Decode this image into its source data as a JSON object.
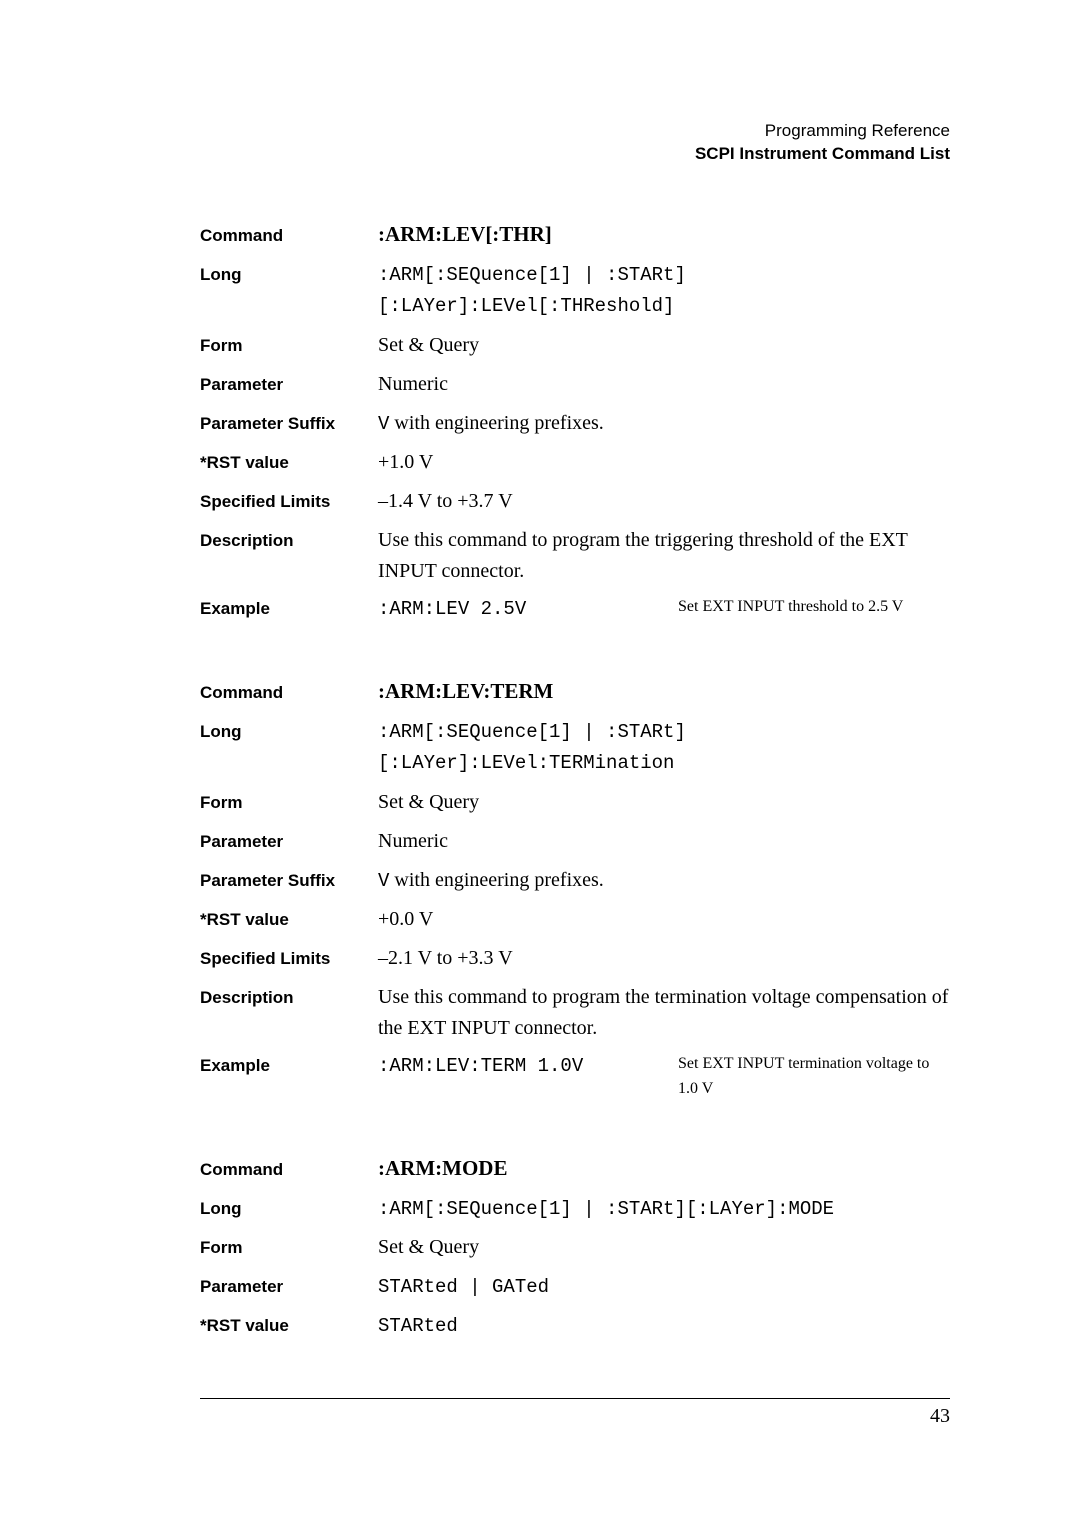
{
  "header": {
    "line1": "Programming Reference",
    "line2": "SCPI Instrument Command List"
  },
  "sections": [
    {
      "rows": [
        {
          "label": "Command",
          "kind": "title",
          "value": ":ARM:LEV[:THR]"
        },
        {
          "label": "Long",
          "kind": "mono",
          "value": ":ARM[:SEQuence[1] | :STARt][:LAYer]:LEVel[:THReshold]"
        },
        {
          "label": "Form",
          "kind": "text",
          "value": "Set & Query"
        },
        {
          "label": "Parameter",
          "kind": "text",
          "value": "Numeric"
        },
        {
          "label": "Parameter Suffix",
          "kind": "html",
          "value": "<span class=\"mono\">V</span> with engineering prefixes."
        },
        {
          "label": "*RST value",
          "kind": "text",
          "value": "+1.0 V"
        },
        {
          "label": "Specified Limits",
          "kind": "text",
          "value": "–1.4 V to +3.7 V"
        },
        {
          "label": "Description",
          "kind": "text",
          "value": "Use this command to program the triggering threshold of the EXT INPUT connector."
        },
        {
          "label": "Example",
          "kind": "example",
          "code": ":ARM:LEV 2.5V",
          "desc": "Set EXT INPUT threshold to 2.5 V"
        }
      ]
    },
    {
      "rows": [
        {
          "label": "Command",
          "kind": "title",
          "value": ":ARM:LEV:TERM"
        },
        {
          "label": "Long",
          "kind": "mono",
          "value": ":ARM[:SEQuence[1] | :STARt][:LAYer]:LEVel:TERMination"
        },
        {
          "label": "Form",
          "kind": "text",
          "value": "Set & Query"
        },
        {
          "label": "Parameter",
          "kind": "text",
          "value": "Numeric"
        },
        {
          "label": "Parameter Suffix",
          "kind": "html",
          "value": "<span class=\"mono\">V</span> with engineering prefixes."
        },
        {
          "label": "*RST value",
          "kind": "text",
          "value": "+0.0 V"
        },
        {
          "label": "Specified Limits",
          "kind": "text",
          "value": "–2.1 V to +3.3 V"
        },
        {
          "label": "Description",
          "kind": "text",
          "value": "Use this command to program the termination voltage compensation of the EXT INPUT connector."
        },
        {
          "label": "Example",
          "kind": "example",
          "code": ":ARM:LEV:TERM 1.0V",
          "desc": "Set EXT INPUT termination voltage to 1.0 V"
        }
      ]
    },
    {
      "rows": [
        {
          "label": "Command",
          "kind": "title",
          "value": ":ARM:MODE"
        },
        {
          "label": "Long",
          "kind": "mono",
          "value": ":ARM[:SEQuence[1] | :STARt][:LAYer]:MODE"
        },
        {
          "label": "Form",
          "kind": "text",
          "value": "Set & Query"
        },
        {
          "label": "Parameter",
          "kind": "mono",
          "value": "STARted | GATed"
        },
        {
          "label": "*RST value",
          "kind": "mono",
          "value": "STARted"
        }
      ]
    }
  ],
  "pageNumber": "43"
}
